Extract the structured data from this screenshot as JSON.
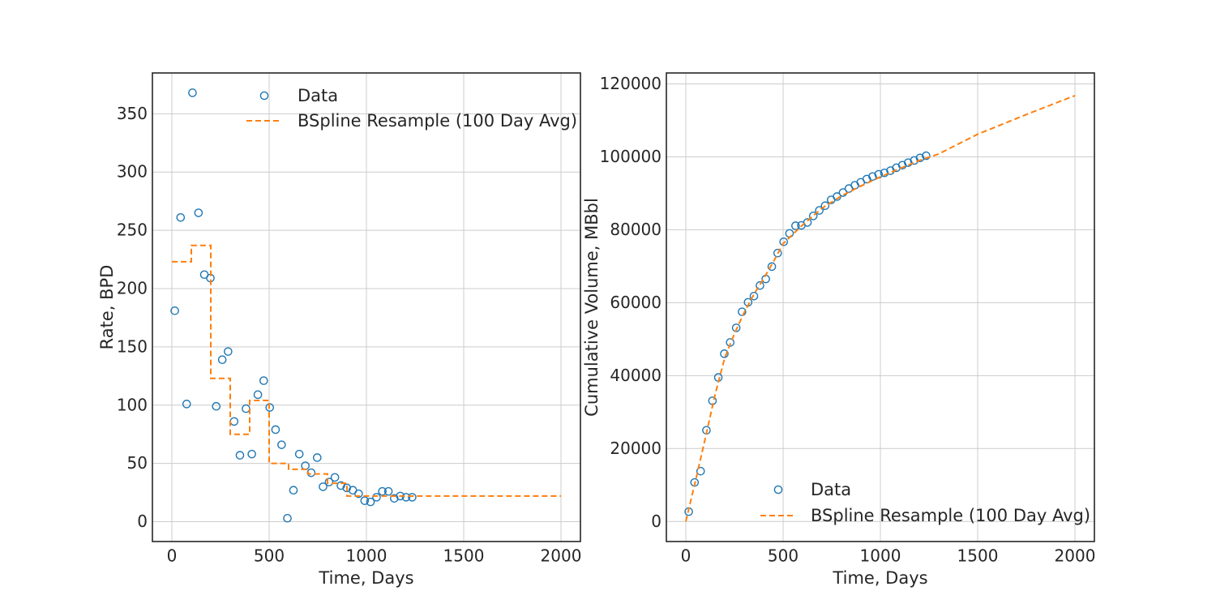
{
  "chart_data": [
    {
      "type": "scatter",
      "xlabel": "Time, Days",
      "ylabel": "Rate, BPD",
      "xlim": [
        -100,
        2100
      ],
      "ylim": [
        -17,
        385
      ],
      "xticks": [
        0,
        500,
        1000,
        1500,
        2000
      ],
      "yticks": [
        0,
        50,
        100,
        150,
        200,
        250,
        300,
        350
      ],
      "grid": true,
      "legend_position": "top-right",
      "series": [
        {
          "name": "Data",
          "kind": "scatter",
          "color": "#1f77b4",
          "x": [
            15,
            45,
            76,
            106,
            137,
            167,
            198,
            228,
            259,
            289,
            320,
            350,
            381,
            411,
            442,
            472,
            503,
            533,
            564,
            594,
            625,
            655,
            686,
            716,
            747,
            777,
            808,
            838,
            869,
            899,
            930,
            960,
            991,
            1021,
            1052,
            1082,
            1113,
            1143,
            1174,
            1204,
            1235
          ],
          "y": [
            181,
            261,
            101,
            368,
            265,
            212,
            209,
            99,
            139,
            146,
            86,
            57,
            97,
            58,
            109,
            121,
            98,
            79,
            66,
            3,
            27,
            58,
            48,
            42,
            55,
            30,
            34,
            38,
            31,
            29,
            27,
            24,
            18,
            17,
            21,
            26,
            26,
            20,
            22,
            21,
            21
          ]
        },
        {
          "name": "BSpline Resample (100 Day Avg)",
          "kind": "step",
          "color": "#ff7f0e",
          "x": [
            0,
            100,
            200,
            300,
            400,
            500,
            600,
            700,
            800,
            900,
            2000
          ],
          "y": [
            223,
            237,
            123,
            75,
            104,
            50,
            45,
            41,
            33,
            22,
            22
          ]
        }
      ]
    },
    {
      "type": "scatter",
      "xlabel": "Time, Days",
      "ylabel": "Cumulative Volume, MBbl",
      "xlim": [
        -100,
        2100
      ],
      "ylim": [
        -5500,
        123000
      ],
      "xticks": [
        0,
        500,
        1000,
        1500,
        2000
      ],
      "yticks": [
        0,
        20000,
        40000,
        60000,
        80000,
        100000,
        120000
      ],
      "grid": true,
      "legend_position": "bottom-right",
      "series": [
        {
          "name": "Data",
          "kind": "scatter",
          "color": "#1f77b4",
          "x": [
            15,
            45,
            76,
            106,
            137,
            167,
            198,
            228,
            259,
            289,
            320,
            350,
            381,
            411,
            442,
            472,
            503,
            533,
            564,
            594,
            625,
            655,
            686,
            716,
            747,
            777,
            808,
            838,
            869,
            899,
            930,
            960,
            991,
            1021,
            1052,
            1082,
            1113,
            1143,
            1174,
            1204,
            1235
          ],
          "y": [
            2700,
            10700,
            13800,
            25000,
            33100,
            39500,
            46000,
            49100,
            53100,
            57500,
            60100,
            61800,
            64700,
            66500,
            69900,
            73600,
            76700,
            79000,
            81100,
            81200,
            82000,
            83800,
            85300,
            86600,
            88200,
            89100,
            90200,
            91300,
            92200,
            93000,
            93900,
            94600,
            95200,
            95600,
            96200,
            97000,
            97700,
            98400,
            99000,
            99700,
            100300
          ]
        },
        {
          "name": "BSpline Resample (100 Day Avg)",
          "kind": "line",
          "color": "#ff7f0e",
          "x": [
            0,
            50,
            100,
            150,
            200,
            250,
            300,
            350,
            400,
            450,
            500,
            600,
            700,
            800,
            900,
            1000,
            1100,
            1200,
            1300,
            1500,
            1750,
            2000
          ],
          "y": [
            0,
            11200,
            22800,
            34700,
            44900,
            51500,
            57300,
            62300,
            66600,
            71200,
            76200,
            81300,
            85900,
            89300,
            92000,
            94500,
            96800,
            99000,
            100800,
            106200,
            111600,
            116800
          ]
        }
      ]
    }
  ]
}
